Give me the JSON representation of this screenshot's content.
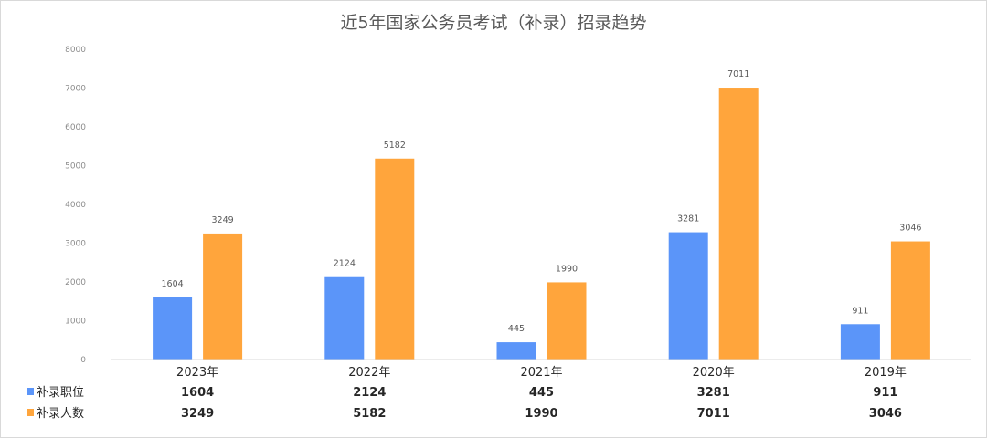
{
  "chart_data": {
    "type": "bar",
    "title": "近5年国家公务员考试（补录）招录趋势",
    "categories": [
      "2023年",
      "2022年",
      "2021年",
      "2020年",
      "2019年"
    ],
    "series": [
      {
        "name": "补录职位",
        "values": [
          1604,
          2124,
          445,
          3281,
          911
        ]
      },
      {
        "name": "补录人数",
        "values": [
          3249,
          5182,
          1990,
          7011,
          3046
        ]
      }
    ],
    "data_table": {
      "rows": [
        {
          "name": "补录职位",
          "values": [
            "1604",
            "2124",
            "445",
            "3281",
            "911"
          ]
        },
        {
          "name": "补录人数",
          "values": [
            "3249",
            "5182",
            "1990",
            "7011",
            "3046"
          ]
        }
      ]
    },
    "y_ticks": [
      "0",
      "1000",
      "2000",
      "3000",
      "4000",
      "5000",
      "6000",
      "7000",
      "8000"
    ],
    "ylim": [
      0,
      8000
    ],
    "grid": false,
    "legend": "data-table-left",
    "colors": [
      "#5b95f9",
      "#ffa53c"
    ]
  }
}
